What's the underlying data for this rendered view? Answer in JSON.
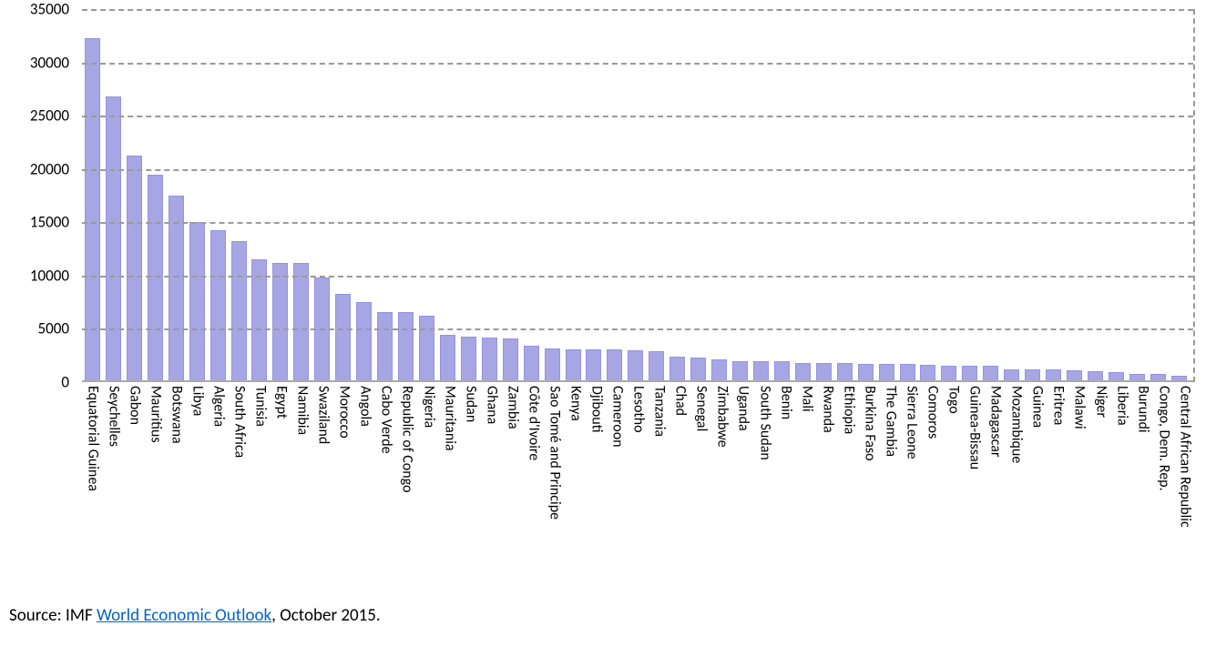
{
  "chart": {
    "type": "bar",
    "background_color": "#ffffff",
    "bar_color": "#a7a6e4",
    "bar_border_color": "#9593de",
    "grid_color": "#9a9a9a",
    "grid_dash": true,
    "axis_font_size": 17,
    "label_font_size": 16,
    "bar_width_ratio": 0.74,
    "ylim": [
      0,
      35000
    ],
    "ytick_step": 5000,
    "yticks": [
      0,
      5000,
      10000,
      15000,
      20000,
      25000,
      30000,
      35000
    ],
    "categories": [
      "Equatorial Guinea",
      "Seychelles",
      "Gabon",
      "Mauritius",
      "Botswana",
      "Libya",
      "Algeria",
      "South Africa",
      "Tunisia",
      "Egypt",
      "Namibia",
      "Swaziland",
      "Morocco",
      "Angola",
      "Cabo Verde",
      "Republic of Congo",
      "Nigeria",
      "Mauritania",
      "Sudan",
      "Ghana",
      "Zambia",
      "Côte d'Ivoire",
      "Sao Tomé and Principe",
      "Kenya",
      "Djibouti",
      "Cameroon",
      "Lesotho",
      "Tanzania",
      "Chad",
      "Senegal",
      "Zimbabwe",
      "Uganda",
      "South Sudan",
      "Benin",
      "Mali",
      "Rwanda",
      "Ethiopia",
      "Burkina Faso",
      "The Gambia",
      "Sierra Leone",
      "Comoros",
      "Togo",
      "Guinea-Bissau",
      "Madagascar",
      "Mozambique",
      "Guinea",
      "Eritrea",
      "Malawi",
      "Niger",
      "Liberia",
      "Burundi",
      "Congo, Dem. Rep.",
      "Central African Republic"
    ],
    "values": [
      32300,
      26800,
      21300,
      19500,
      17500,
      15000,
      14300,
      13200,
      11500,
      11200,
      11200,
      9800,
      8300,
      7500,
      6600,
      6600,
      6200,
      4400,
      4300,
      4200,
      4100,
      3400,
      3200,
      3100,
      3100,
      3100,
      3000,
      2900,
      2400,
      2300,
      2100,
      2000,
      2000,
      2000,
      1800,
      1800,
      1800,
      1700,
      1700,
      1700,
      1600,
      1500,
      1500,
      1500,
      1200,
      1200,
      1200,
      1100,
      1000,
      900,
      800,
      800,
      600
    ]
  },
  "source": {
    "prefix": "Source: IMF ",
    "link_text": "World Economic Outlook",
    "suffix": ", October 2015."
  }
}
